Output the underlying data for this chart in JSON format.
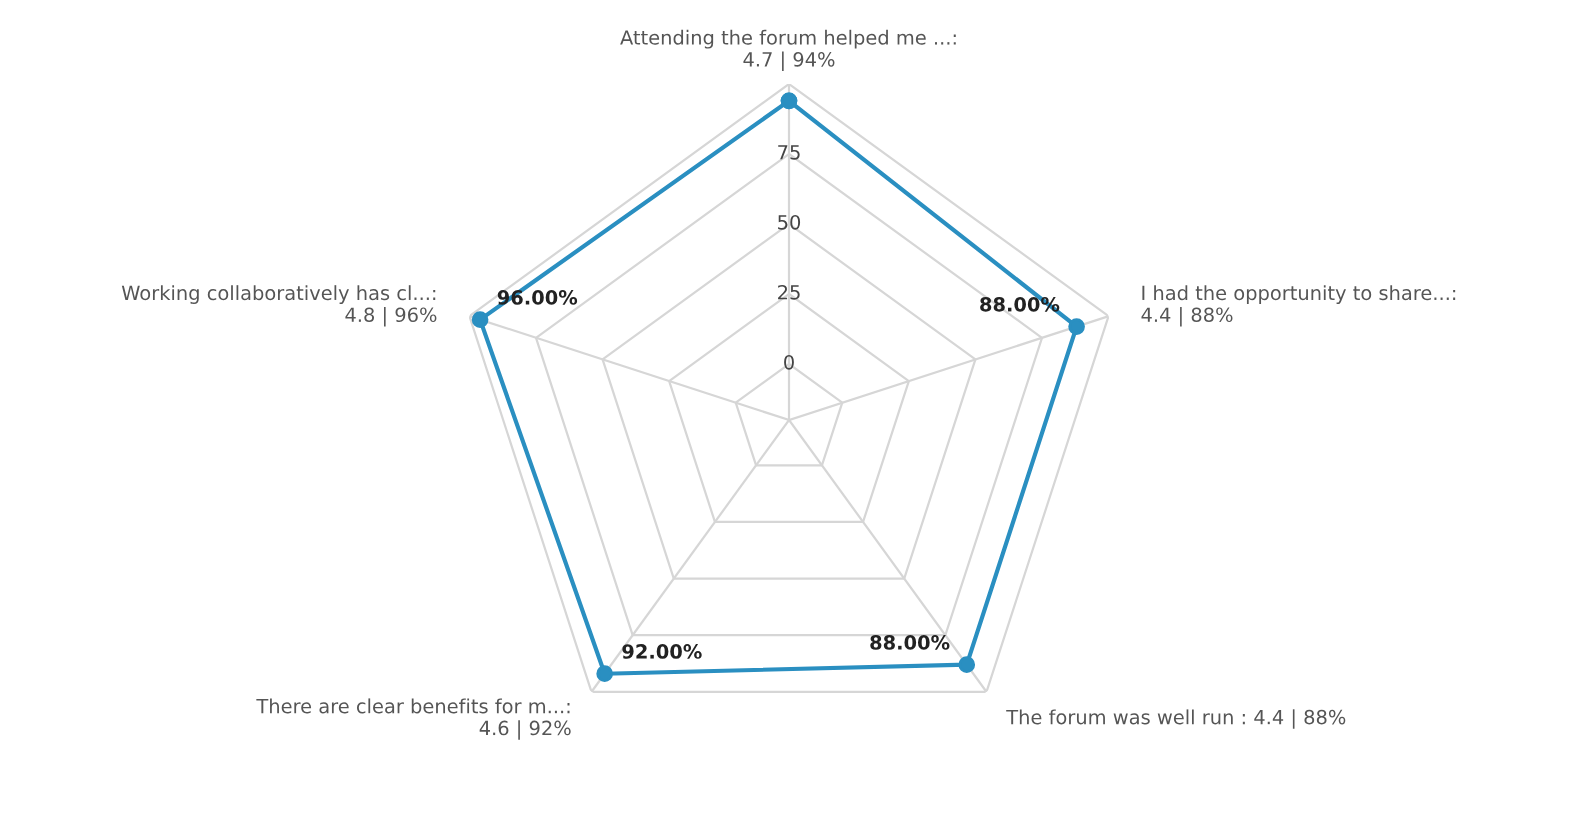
{
  "chart_data": {
    "type": "radar",
    "categories": [
      "Attending the forum helped me ...:\n4.7 | 94%",
      "I had the opportunity to share...:\n4.4 | 88%",
      "The forum was well run : 4.4 | 88%",
      "There are clear benefits for m...:\n4.6 | 92%",
      "Working collaboratively has cl...:\n4.8 | 96%"
    ],
    "series": [
      {
        "color": "#2a8fc1",
        "values": [
          94,
          88,
          88,
          92,
          96
        ],
        "value_labels": [
          null,
          "88.00%",
          "88.00%",
          "92.00%",
          "96.00%"
        ]
      }
    ],
    "ylim": [
      -20,
      100
    ],
    "yticks": [
      0,
      25,
      50,
      75
    ],
    "grid": true,
    "marker": "circle",
    "line_style": "solid"
  }
}
